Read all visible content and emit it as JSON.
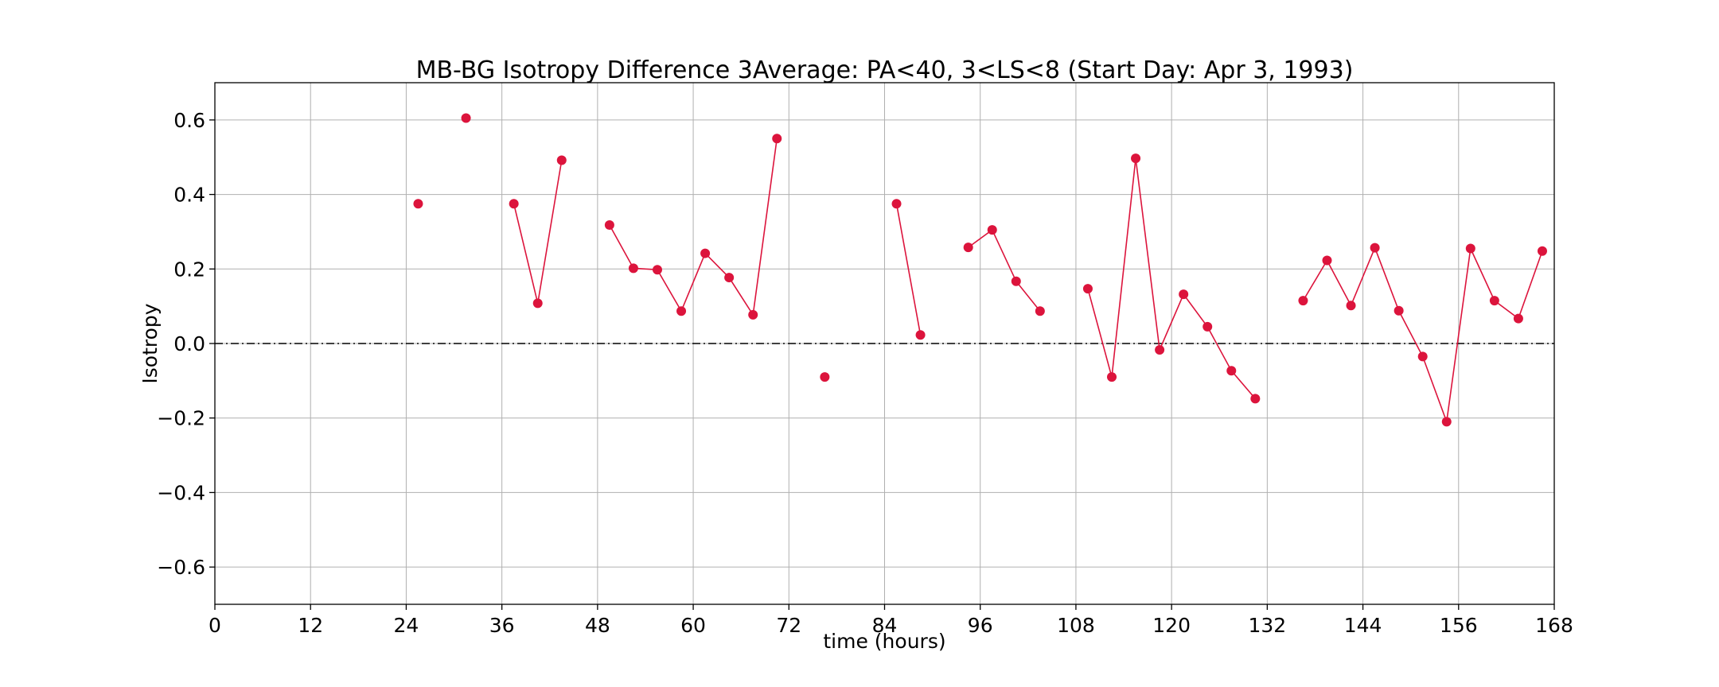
{
  "chart_data": {
    "type": "line",
    "title": "MB-BG Isotropy Difference 3Average: PA<40, 3<LS<8 (Start Day: Apr 3, 1993)",
    "xlabel": "time (hours)",
    "ylabel": "Isotropy",
    "xlim": [
      0,
      168
    ],
    "ylim": [
      -0.7,
      0.7
    ],
    "xticks": [
      0,
      12,
      24,
      36,
      48,
      60,
      72,
      84,
      96,
      108,
      120,
      132,
      144,
      156,
      168
    ],
    "yticks": [
      -0.6,
      -0.4,
      -0.2,
      0.0,
      0.2,
      0.4,
      0.6
    ],
    "ytick_labels": [
      "−0.6",
      "−0.4",
      "−0.2",
      "0.0",
      "0.2",
      "0.4",
      "0.6"
    ],
    "grid": true,
    "reference_line": {
      "y": 0,
      "style": "dash-dot",
      "color": "#000000"
    },
    "series_color": "#dc143c",
    "segments": [
      [
        [
          25.5,
          0.375
        ]
      ],
      [
        [
          31.5,
          0.605
        ]
      ],
      [
        [
          37.5,
          0.375
        ],
        [
          40.5,
          0.108
        ],
        [
          43.5,
          0.492
        ]
      ],
      [
        [
          49.5,
          0.318
        ],
        [
          52.5,
          0.202
        ],
        [
          55.5,
          0.198
        ],
        [
          58.5,
          0.087
        ],
        [
          61.5,
          0.242
        ],
        [
          64.5,
          0.177
        ],
        [
          67.5,
          0.077
        ],
        [
          70.5,
          0.55
        ]
      ],
      [
        [
          76.5,
          -0.09
        ]
      ],
      [
        [
          85.5,
          0.375
        ],
        [
          88.5,
          0.023
        ]
      ],
      [
        [
          94.5,
          0.258
        ],
        [
          97.5,
          0.305
        ],
        [
          100.5,
          0.167
        ],
        [
          103.5,
          0.087
        ]
      ],
      [
        [
          109.5,
          0.147
        ],
        [
          112.5,
          -0.09
        ],
        [
          115.5,
          0.497
        ],
        [
          118.5,
          -0.017
        ],
        [
          121.5,
          0.132
        ],
        [
          124.5,
          0.045
        ],
        [
          127.5,
          -0.073
        ],
        [
          130.5,
          -0.148
        ]
      ],
      [
        [
          136.5,
          0.115
        ],
        [
          139.5,
          0.223
        ],
        [
          142.5,
          0.102
        ],
        [
          145.5,
          0.257
        ],
        [
          148.5,
          0.088
        ],
        [
          151.5,
          -0.035
        ],
        [
          154.5,
          -0.21
        ],
        [
          157.5,
          0.255
        ],
        [
          160.5,
          0.115
        ],
        [
          163.5,
          0.067
        ],
        [
          166.5,
          0.248
        ]
      ]
    ]
  }
}
